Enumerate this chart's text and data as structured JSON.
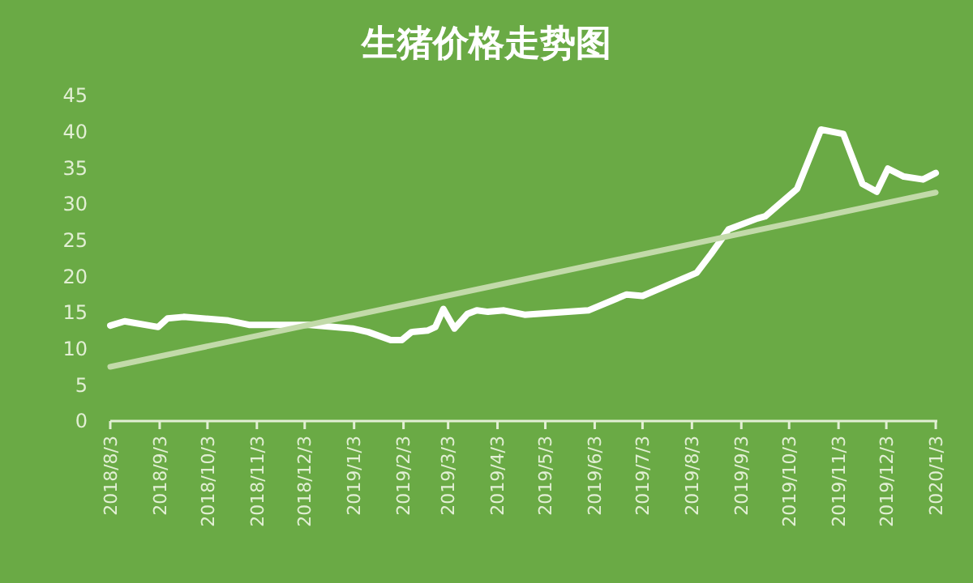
{
  "chart_data": {
    "type": "line",
    "title": "生猪价格走势图",
    "series": [
      {
        "color": "#ffffff",
        "x": [
          "2018-08-03",
          "2018-08-12",
          "2018-09-02",
          "2018-09-08",
          "2018-09-18",
          "2018-10-16",
          "2018-10-29",
          "2018-12-06",
          "2019-01-02",
          "2019-01-12",
          "2019-01-26",
          "2019-02-02",
          "2019-02-08",
          "2019-02-18",
          "2019-02-23",
          "2019-02-28",
          "2019-03-07",
          "2019-03-15",
          "2019-03-21",
          "2019-03-28",
          "2019-04-07",
          "2019-04-20",
          "2019-05-30",
          "2019-06-23",
          "2019-07-03",
          "2019-08-06",
          "2019-08-15",
          "2019-08-26",
          "2019-09-13",
          "2019-09-18",
          "2019-10-08",
          "2019-10-23",
          "2019-11-06",
          "2019-11-18",
          "2019-11-27",
          "2019-12-04",
          "2019-12-14",
          "2019-12-26",
          "2020-01-03"
        ],
        "values": [
          13.2,
          13.8,
          13.0,
          14.2,
          14.4,
          13.9,
          13.3,
          13.3,
          12.8,
          12.3,
          11.2,
          11.2,
          12.3,
          12.5,
          13.0,
          15.5,
          12.8,
          14.8,
          15.3,
          15.1,
          15.3,
          14.7,
          15.3,
          17.5,
          17.3,
          20.5,
          23.1,
          26.5,
          28.0,
          28.3,
          32.1,
          40.3,
          39.7,
          32.8,
          31.7,
          34.9,
          33.8,
          33.4,
          34.3
        ]
      },
      {
        "color": "#c2daa9",
        "x": [
          "2018-08-03",
          "2020-01-03"
        ],
        "values": [
          7.5,
          31.6
        ]
      }
    ],
    "xlim": [
      "2018-08-03",
      "2020-01-04"
    ],
    "xticks": [
      {
        "value": "2018-08-03",
        "label": "2018/8/3"
      },
      {
        "value": "2018-09-03",
        "label": "2018/9/3"
      },
      {
        "value": "2018-10-03",
        "label": "2018/10/3"
      },
      {
        "value": "2018-11-03",
        "label": "2018/11/3"
      },
      {
        "value": "2018-12-03",
        "label": "2018/12/3"
      },
      {
        "value": "2019-01-03",
        "label": "2019/1/3"
      },
      {
        "value": "2019-02-03",
        "label": "2019/2/3"
      },
      {
        "value": "2019-03-03",
        "label": "2019/3/3"
      },
      {
        "value": "2019-04-03",
        "label": "2019/4/3"
      },
      {
        "value": "2019-05-03",
        "label": "2019/5/3"
      },
      {
        "value": "2019-06-03",
        "label": "2019/6/3"
      },
      {
        "value": "2019-07-03",
        "label": "2019/7/3"
      },
      {
        "value": "2019-08-03",
        "label": "2019/8/3"
      },
      {
        "value": "2019-09-03",
        "label": "2019/9/3"
      },
      {
        "value": "2019-10-03",
        "label": "2019/10/3"
      },
      {
        "value": "2019-11-03",
        "label": "2019/11/3"
      },
      {
        "value": "2019-12-03",
        "label": "2019/12/3"
      },
      {
        "value": "2020-01-03",
        "label": "2020/1/3"
      }
    ],
    "ylim": [
      0,
      45
    ],
    "yticks": [
      0,
      5,
      10,
      15,
      20,
      25,
      30,
      35,
      40,
      45
    ],
    "grid": false,
    "marker": "none",
    "line_style": "solid"
  }
}
